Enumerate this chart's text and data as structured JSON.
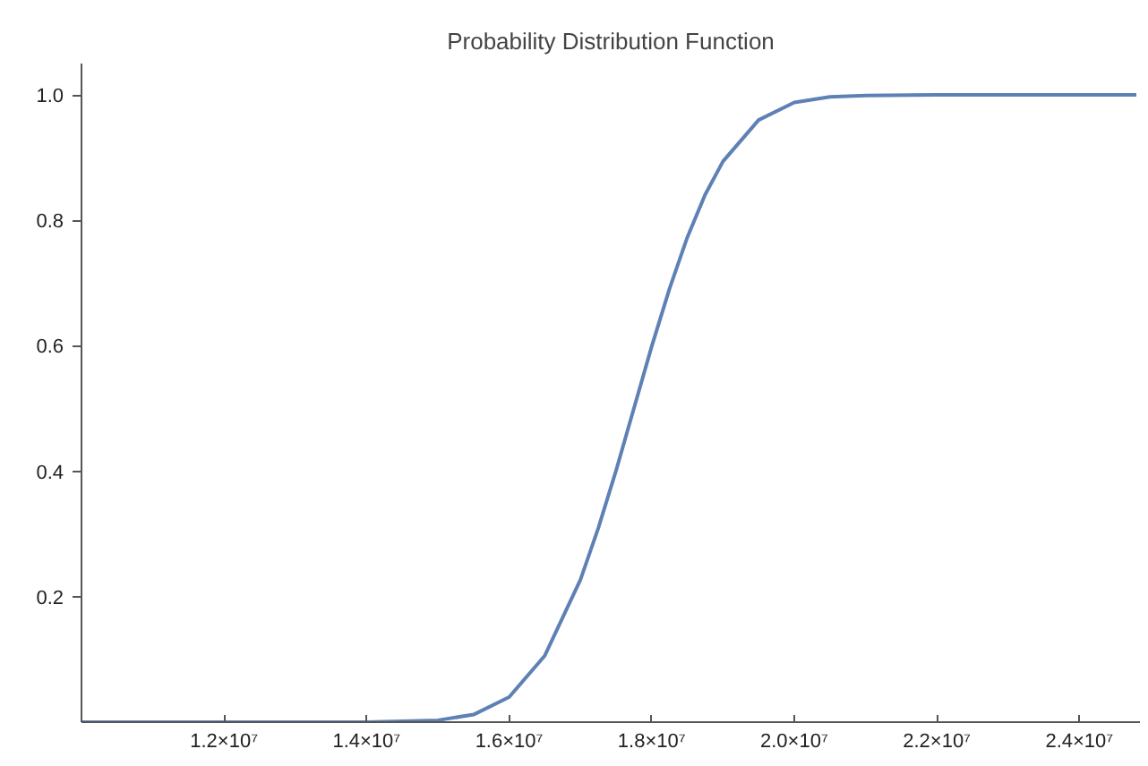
{
  "chart_data": {
    "type": "line",
    "title": "Probability Distribution Function",
    "x": [
      10000000,
      12000000,
      14000000,
      15000000,
      15500000,
      16000000,
      16500000,
      17000000,
      17250000,
      17500000,
      17750000,
      18000000,
      18250000,
      18500000,
      18750000,
      19000000,
      19500000,
      20000000,
      20500000,
      21000000,
      22000000,
      24800000
    ],
    "series": [
      {
        "color": "#5e81b5",
        "values": [
          0,
          0,
          0,
          0.003,
          0.012,
          0.04,
          0.106,
          0.227,
          0.309,
          0.401,
          0.5,
          0.599,
          0.691,
          0.773,
          0.841,
          0.894,
          0.96,
          0.988,
          0.997,
          0.999,
          1.0,
          1.0
        ]
      }
    ],
    "xlim": [
      10000000,
      24850000
    ],
    "ylim": [
      0,
      1.05
    ],
    "xticks": [
      {
        "value": 12000000,
        "label": "1.2×10⁷"
      },
      {
        "value": 14000000,
        "label": "1.4×10⁷"
      },
      {
        "value": 16000000,
        "label": "1.6×10⁷"
      },
      {
        "value": 18000000,
        "label": "1.8×10⁷"
      },
      {
        "value": 20000000,
        "label": "2.0×10⁷"
      },
      {
        "value": 22000000,
        "label": "2.2×10⁷"
      },
      {
        "value": 24000000,
        "label": "2.4×10⁷"
      }
    ],
    "yticks": [
      0.2,
      0.4,
      0.6,
      {
        "value": 0.8,
        "label": "0.8"
      },
      {
        "value": 1.0,
        "label": "1.0"
      }
    ],
    "grid": false,
    "marker": "none",
    "line_style": "solid"
  }
}
